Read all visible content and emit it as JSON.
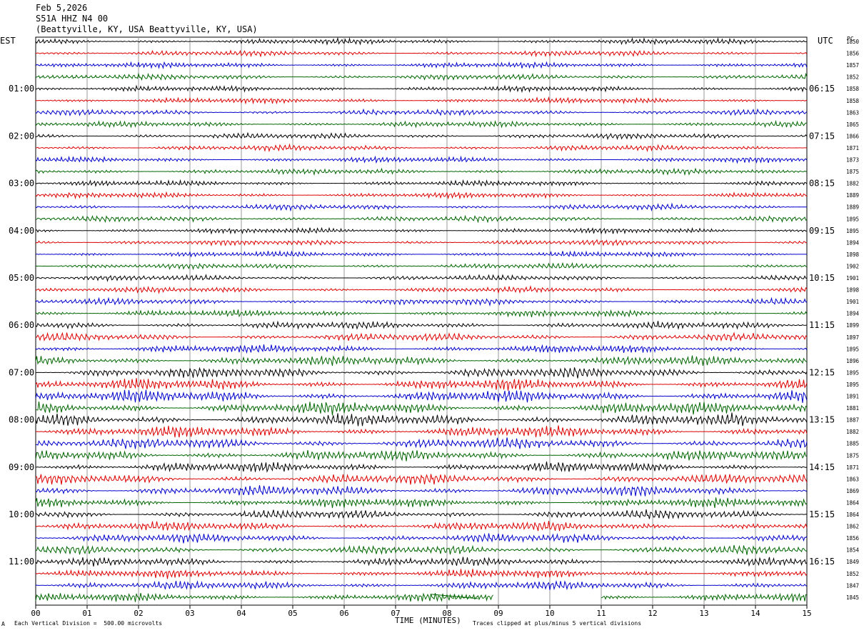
{
  "header": {
    "date": "Feb 5,2026",
    "station": "S51A HHZ N4 00",
    "location": "(Beattyville, KY, USA Beattyville, KY, USA)"
  },
  "left_axis_label": "EST",
  "right_axis_label": "UTC",
  "pc_label": "PC",
  "footer": {
    "scale_note": "Each Vertical Division =  500.00 microvolts",
    "scale_mark": "A",
    "time_label": "TIME (MINUTES)",
    "clip_note": "Traces clipped at plus/minus 5 vertical divisions"
  },
  "colors": {
    "cycle": [
      "#000000",
      "#dd0000",
      "#0000cc",
      "#006600"
    ],
    "grid": "#999999"
  },
  "chart_data": {
    "type": "line",
    "x_ticks": [
      "00",
      "01",
      "02",
      "03",
      "04",
      "05",
      "06",
      "07",
      "08",
      "09",
      "10",
      "11",
      "12",
      "13",
      "14",
      "15"
    ],
    "xlim": [
      0,
      15
    ],
    "traces_per_hour": 4,
    "left_hours": [
      "01:00",
      "02:00",
      "03:00",
      "04:00",
      "05:00",
      "06:00",
      "07:00",
      "08:00",
      "09:00",
      "10:00",
      "11:00"
    ],
    "right_hours": [
      "06:15",
      "07:15",
      "08:15",
      "09:15",
      "10:15",
      "11:15",
      "12:15",
      "13:15",
      "14:15",
      "15:15",
      "16:15"
    ],
    "trace_values": [
      1850,
      1856,
      1857,
      1852,
      1858,
      1858,
      1863,
      1865,
      1866,
      1871,
      1873,
      1875,
      1882,
      1889,
      1889,
      1895,
      1895,
      1894,
      1898,
      1902,
      1901,
      1898,
      1901,
      1894,
      1899,
      1897,
      1895,
      1896,
      1895,
      1895,
      1891,
      1881,
      1887,
      1882,
      1885,
      1875,
      1871,
      1863,
      1869,
      1864,
      1864,
      1862,
      1856,
      1854,
      1849,
      1852,
      1847,
      1845
    ],
    "relative_amplitude": [
      1.0,
      1.0,
      1.0,
      1.0,
      1.0,
      1.0,
      1.0,
      1.0,
      1.0,
      1.0,
      1.0,
      1.0,
      1.0,
      1.0,
      1.0,
      1.0,
      1.0,
      1.0,
      1.0,
      1.0,
      1.0,
      1.0,
      1.1,
      1.2,
      1.3,
      1.4,
      1.5,
      1.7,
      1.9,
      2.0,
      2.1,
      2.2,
      2.1,
      2.0,
      1.9,
      1.9,
      1.8,
      1.8,
      1.8,
      1.7,
      1.6,
      1.6,
      1.6,
      1.5,
      1.5,
      1.5,
      1.5,
      1.5
    ],
    "data_gap_last_trace": [
      8.9,
      11.0
    ]
  }
}
